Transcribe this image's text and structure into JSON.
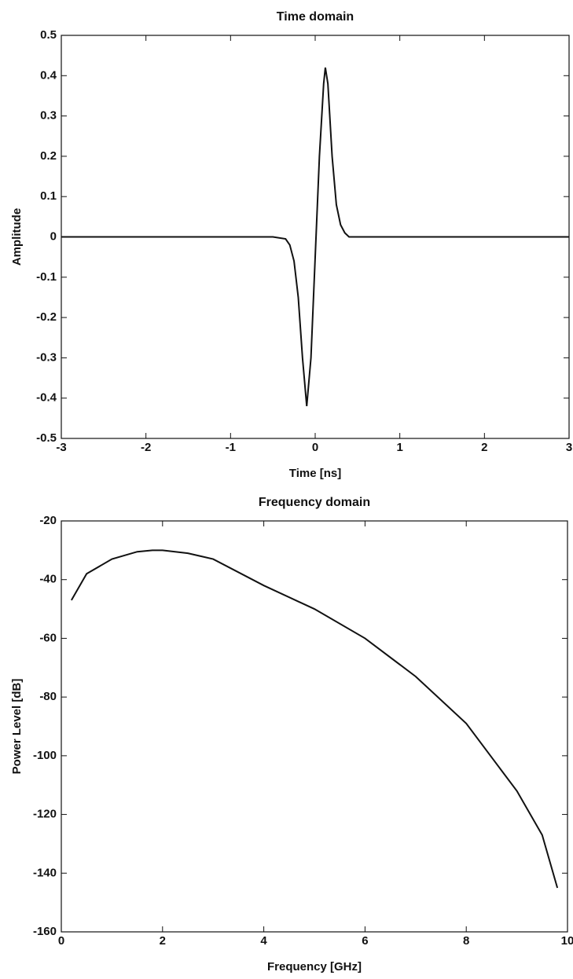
{
  "chart_data": [
    {
      "type": "line",
      "title": "Time domain",
      "x_label": "Time [ns]",
      "y_label": "Amplitude",
      "x": [
        -3,
        -0.5,
        -0.35,
        -0.3,
        -0.25,
        -0.2,
        -0.15,
        -0.1,
        -0.05,
        0,
        0.05,
        0.1,
        0.12,
        0.15,
        0.2,
        0.25,
        0.3,
        0.35,
        0.4,
        0.5,
        3
      ],
      "values": [
        0,
        0,
        -0.005,
        -0.02,
        -0.06,
        -0.15,
        -0.3,
        -0.42,
        -0.3,
        -0.05,
        0.2,
        0.38,
        0.42,
        0.38,
        0.2,
        0.08,
        0.03,
        0.01,
        0,
        0,
        0
      ],
      "color": "#111111",
      "xlim": [
        -3,
        3
      ],
      "xticks": [
        -3,
        -2,
        -1,
        0,
        1,
        2,
        3
      ],
      "ylim": [
        -0.5,
        0.5
      ],
      "yticks": [
        -0.5,
        -0.4,
        -0.3,
        -0.2,
        -0.1,
        0,
        0.1,
        0.2,
        0.3,
        0.4,
        0.5
      ],
      "grid": false
    },
    {
      "type": "line",
      "title": "Frequency domain",
      "x_label": "Frequency [GHz]",
      "y_label": "Power Level [dB]",
      "x": [
        0.2,
        0.5,
        1,
        1.5,
        1.8,
        2,
        2.5,
        3,
        4,
        5,
        6,
        7,
        8,
        9,
        9.5,
        9.8
      ],
      "values": [
        -47,
        -38,
        -33,
        -30.5,
        -30,
        -30,
        -31,
        -33,
        -42,
        -50,
        -60,
        -73,
        -89,
        -112,
        -127,
        -145
      ],
      "color": "#111111",
      "xlim": [
        0,
        10
      ],
      "xticks": [
        0,
        2,
        4,
        6,
        8,
        10
      ],
      "ylim": [
        -160,
        -20
      ],
      "yticks": [
        -160,
        -140,
        -120,
        -100,
        -80,
        -60,
        -40,
        -20
      ],
      "grid": false
    }
  ]
}
